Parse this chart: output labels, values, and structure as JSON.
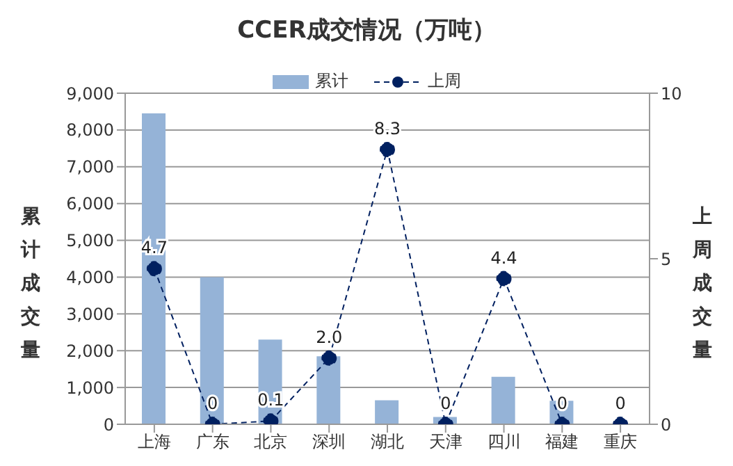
{
  "chart_data": {
    "type": "bar",
    "title": "CCER成交情况（万吨）",
    "ylabel": "累计成交量",
    "y2label": "上周成交量",
    "categories": [
      "上海",
      "广东",
      "北京",
      "深圳",
      "湖北",
      "天津",
      "四川",
      "福建",
      "重庆"
    ],
    "series": [
      {
        "name": "累计",
        "color": "#95b3d7",
        "values": [
          8450,
          4000,
          2300,
          1850,
          650,
          200,
          1290,
          640,
          0
        ]
      },
      {
        "name": "上周",
        "type": "line",
        "axis": "y2",
        "color": "#002060",
        "values": [
          4.7,
          0,
          0.1,
          2.0,
          8.3,
          0,
          4.4,
          0,
          0
        ],
        "value_labels": [
          "4.7",
          "0",
          "0.1",
          "2.0",
          "8.3",
          "0",
          "4.4",
          "0",
          "0"
        ],
        "marker": "circle",
        "line_style": "dashed"
      }
    ],
    "ylim": [
      0,
      9000
    ],
    "yticks": [
      0,
      {
        "value": 1000,
        "label": "1,000"
      },
      {
        "value": 2000,
        "label": "2,000"
      },
      {
        "value": 3000,
        "label": "3,000"
      },
      {
        "value": 4000,
        "label": "4,000"
      },
      {
        "value": 5000,
        "label": "5,000"
      },
      {
        "value": 6000,
        "label": "6,000"
      },
      {
        "value": 7000,
        "label": "7,000"
      },
      {
        "value": 8000,
        "label": "8,000"
      },
      {
        "value": 9000,
        "label": "9,000"
      }
    ],
    "y2lim": [
      0,
      10
    ],
    "y2ticks": [
      0,
      5,
      10
    ],
    "grid": "y",
    "legend": "top"
  }
}
